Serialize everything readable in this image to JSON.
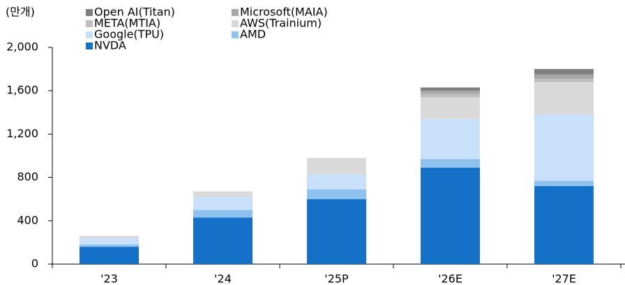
{
  "chart_data": {
    "type": "stacked_bar",
    "y_label": "(만개)",
    "categories": [
      "'23",
      "'24",
      "'25P",
      "'26E",
      "'27E"
    ],
    "series": [
      {
        "name": "NVDA",
        "color": "#1570c8",
        "values": [
          160,
          430,
          600,
          890,
          720
        ]
      },
      {
        "name": "AMD",
        "color": "#8fc1ef",
        "values": [
          20,
          70,
          90,
          80,
          50
        ]
      },
      {
        "name": "Google(TPU)",
        "color": "#c8e0fa",
        "values": [
          60,
          120,
          140,
          370,
          610
        ]
      },
      {
        "name": "AWS(Trainium)",
        "color": "#d9d9d9",
        "values": [
          20,
          50,
          150,
          200,
          300
        ]
      },
      {
        "name": "META(MTIA)",
        "color": "#bfbfbf",
        "values": [
          0,
          0,
          0,
          30,
          30
        ]
      },
      {
        "name": "Microsoft(MAIA)",
        "color": "#a6a6a6",
        "values": [
          0,
          0,
          0,
          30,
          40
        ]
      },
      {
        "name": "Open AI(Titan)",
        "color": "#7f7f7f",
        "values": [
          0,
          0,
          0,
          30,
          50
        ]
      }
    ],
    "ylim": [
      0,
      2000
    ],
    "yticks": [
      0,
      400,
      800,
      {
        "value": 1200,
        "label": "1,200"
      },
      {
        "value": 1600,
        "label": "1,600"
      },
      {
        "value": 2000,
        "label": "2,000"
      }
    ],
    "grid": false
  }
}
